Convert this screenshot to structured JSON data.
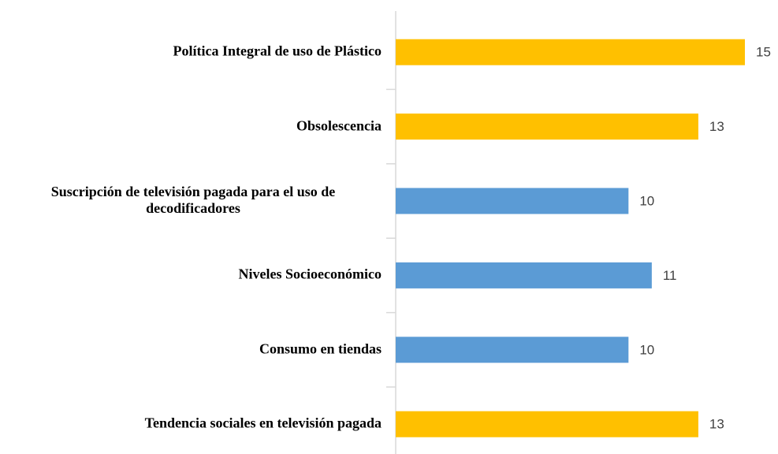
{
  "chart_data": {
    "type": "barh",
    "categories": [
      "Política Integral de uso de Plástico",
      "Obsolescencia",
      "Suscripción de televisión pagada para el uso de decodificadores",
      "Niveles Socioeconómico",
      "Consumo en tiendas",
      "Tendencia sociales en televisión pagada"
    ],
    "values": [
      15,
      13,
      10,
      11,
      10,
      13
    ],
    "colors": [
      "#FFC000",
      "#FFC000",
      "#5B9BD5",
      "#5B9BD5",
      "#5B9BD5",
      "#FFC000"
    ]
  }
}
